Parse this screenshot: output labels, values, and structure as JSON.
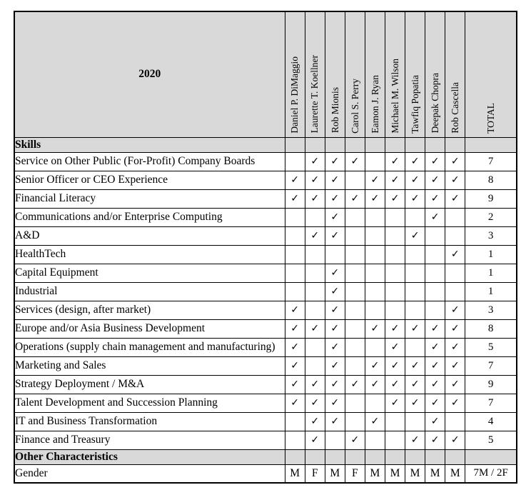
{
  "table": {
    "year": "2020",
    "check_glyph": "✓",
    "total_label": "TOTAL",
    "colors": {
      "header_bg": "#d9d9d9",
      "border": "#000000"
    },
    "columns": [
      "Daniel P. DiMaggio",
      "Laurette T. Koellner",
      "Rob Mionis",
      "Carol S. Perry",
      "Eamon J. Ryan",
      "Michael M. Wilson",
      "Tawfiq Popatia",
      "Deepak Chopra",
      "Rob Cascella"
    ],
    "sections": [
      {
        "label": "Skills",
        "rows": [
          {
            "label": "Service on Other Public (For-Profit) Company Boards",
            "checks": [
              0,
              1,
              1,
              1,
              0,
              1,
              1,
              1,
              1
            ],
            "total": "7"
          },
          {
            "label": "Senior Officer or CEO Experience",
            "checks": [
              1,
              1,
              1,
              0,
              1,
              1,
              1,
              1,
              1
            ],
            "total": "8"
          },
          {
            "label": "Financial Literacy",
            "checks": [
              1,
              1,
              1,
              1,
              1,
              1,
              1,
              1,
              1
            ],
            "total": "9"
          },
          {
            "label": "Communications and/or Enterprise Computing",
            "checks": [
              0,
              0,
              1,
              0,
              0,
              0,
              0,
              1,
              0
            ],
            "total": "2"
          },
          {
            "label": "A&D",
            "checks": [
              0,
              1,
              1,
              0,
              0,
              0,
              1,
              0,
              0
            ],
            "total": "3"
          },
          {
            "label": "HealthTech",
            "checks": [
              0,
              0,
              0,
              0,
              0,
              0,
              0,
              0,
              1
            ],
            "total": "1"
          },
          {
            "label": "Capital Equipment",
            "checks": [
              0,
              0,
              1,
              0,
              0,
              0,
              0,
              0,
              0
            ],
            "total": "1"
          },
          {
            "label": "Industrial",
            "checks": [
              0,
              0,
              1,
              0,
              0,
              0,
              0,
              0,
              0
            ],
            "total": "1"
          },
          {
            "label": "Services (design, after market)",
            "checks": [
              1,
              0,
              1,
              0,
              0,
              0,
              0,
              0,
              1
            ],
            "total": "3"
          },
          {
            "label": "Europe and/or Asia Business Development",
            "checks": [
              1,
              1,
              1,
              0,
              1,
              1,
              1,
              1,
              1
            ],
            "total": "8"
          },
          {
            "label": "Operations (supply chain management and manufacturing)",
            "checks": [
              1,
              0,
              1,
              0,
              0,
              1,
              0,
              1,
              1
            ],
            "total": "5"
          },
          {
            "label": "Marketing and Sales",
            "checks": [
              1,
              0,
              1,
              0,
              1,
              1,
              1,
              1,
              1
            ],
            "total": "7"
          },
          {
            "label": "Strategy Deployment / M&A",
            "checks": [
              1,
              1,
              1,
              1,
              1,
              1,
              1,
              1,
              1
            ],
            "total": "9"
          },
          {
            "label": "Talent Development and Succession Planning",
            "checks": [
              1,
              1,
              1,
              0,
              0,
              1,
              1,
              1,
              1
            ],
            "total": "7"
          },
          {
            "label": "IT and Business Transformation",
            "checks": [
              0,
              1,
              1,
              0,
              1,
              0,
              0,
              1,
              0
            ],
            "total": "4"
          },
          {
            "label": "Finance and Treasury",
            "checks": [
              0,
              1,
              0,
              1,
              0,
              0,
              1,
              1,
              1
            ],
            "total": "5"
          }
        ]
      },
      {
        "label": "Other Characteristics",
        "rows": [
          {
            "label": "Gender",
            "cells": [
              "M",
              "F",
              "M",
              "F",
              "M",
              "M",
              "M",
              "M",
              "M"
            ],
            "total": "7M / 2F"
          }
        ]
      }
    ]
  }
}
